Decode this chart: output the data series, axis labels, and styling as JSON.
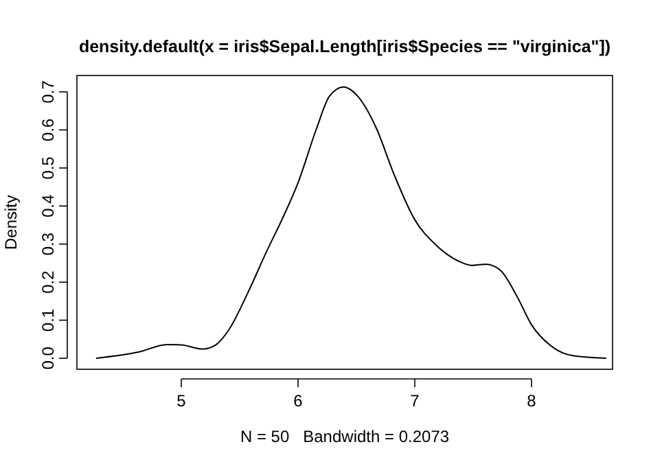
{
  "chart_data": {
    "type": "line",
    "title": "density.default(x = iris$Sepal.Length[iris$Species == \"virginica\"])",
    "xlabel": "N = 50   Bandwidth = 0.2073",
    "ylabel": "Density",
    "series": [
      {
        "color": "#000000",
        "x": [
          4.27,
          4.63,
          4.88,
          5.0,
          5.18,
          5.29,
          5.41,
          5.57,
          5.73,
          5.88,
          6.0,
          6.16,
          6.27,
          6.39,
          6.51,
          6.67,
          6.82,
          7.0,
          7.18,
          7.37,
          7.49,
          7.61,
          7.73,
          7.88,
          8.0,
          8.16,
          8.35,
          8.64
        ],
        "values": [
          0,
          0.016,
          0.036,
          0.035,
          0.024,
          0.034,
          0.076,
          0.172,
          0.28,
          0.376,
          0.461,
          0.605,
          0.689,
          0.713,
          0.689,
          0.605,
          0.485,
          0.364,
          0.298,
          0.256,
          0.244,
          0.247,
          0.232,
          0.16,
          0.088,
          0.034,
          0.007,
          0
        ]
      }
    ],
    "xlim": [
      4.106,
      8.694
    ],
    "ylim": [
      -0.029,
      0.743
    ],
    "xticks": [
      5,
      6,
      7,
      8
    ],
    "yticks": [
      {
        "value": 0,
        "label": "0.0"
      },
      0.1,
      0.2,
      0.3,
      0.4,
      0.5,
      0.6,
      0.7
    ],
    "grid": false,
    "marker": "none",
    "line_style": "solid"
  }
}
